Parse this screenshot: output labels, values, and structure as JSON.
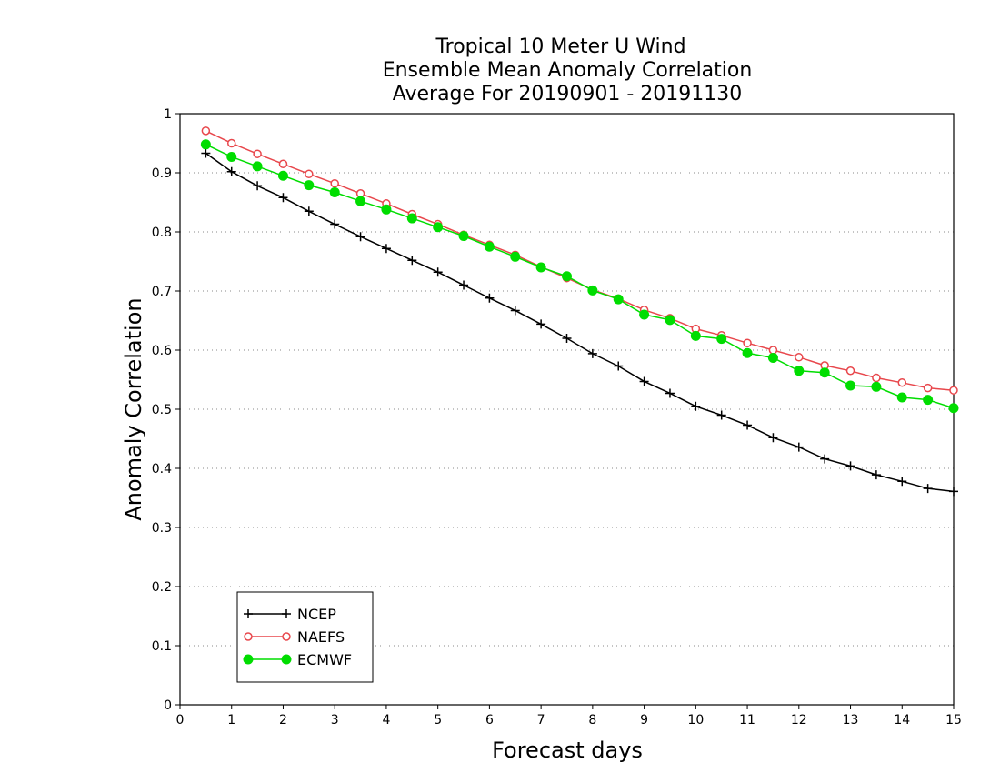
{
  "chart_data": {
    "type": "line",
    "title_lines": [
      "Tropical 10 Meter U Wind",
      "Ensemble Mean Anomaly Correlation",
      "Average For 20190901 - 20191130"
    ],
    "xlabel": "Forecast days",
    "ylabel": "Anomaly Correlation",
    "xlim": [
      0,
      15
    ],
    "ylim": [
      0,
      1
    ],
    "x_ticks": [
      "0",
      "1",
      "2",
      "3",
      "4",
      "5",
      "6",
      "7",
      "8",
      "9",
      "10",
      "11",
      "12",
      "13",
      "14",
      "15"
    ],
    "y_ticks": [
      "0",
      "0.1",
      "0.2",
      "0.3",
      "0.4",
      "0.5",
      "0.6",
      "0.7",
      "0.8",
      "0.9",
      "1"
    ],
    "grid": "horizontal dotted",
    "legend_position": "bottom-left",
    "x": [
      0.5,
      1,
      1.5,
      2,
      2.5,
      3,
      3.5,
      4,
      4.5,
      5,
      5.5,
      6,
      6.5,
      7,
      7.5,
      8,
      8.5,
      9,
      9.5,
      10,
      10.5,
      11,
      11.5,
      12,
      12.5,
      13,
      13.5,
      14,
      14.5,
      15
    ],
    "series": [
      {
        "name": "NCEP",
        "color": "#000000",
        "marker": "plus",
        "values": [
          0.933,
          0.902,
          0.878,
          0.858,
          0.835,
          0.813,
          0.792,
          0.772,
          0.752,
          0.732,
          0.71,
          0.688,
          0.667,
          0.644,
          0.62,
          0.594,
          0.573,
          0.547,
          0.527,
          0.505,
          0.49,
          0.473,
          0.452,
          0.436,
          0.416,
          0.404,
          0.389,
          0.378,
          0.366,
          0.361
        ]
      },
      {
        "name": "NAEFS",
        "color": "#e8474c",
        "marker": "open-circle",
        "values": [
          0.971,
          0.95,
          0.932,
          0.915,
          0.898,
          0.882,
          0.865,
          0.848,
          0.83,
          0.813,
          0.795,
          0.778,
          0.761,
          0.741,
          0.722,
          0.702,
          0.687,
          0.668,
          0.654,
          0.636,
          0.625,
          0.612,
          0.6,
          0.588,
          0.574,
          0.565,
          0.553,
          0.545,
          0.536,
          0.532
        ]
      },
      {
        "name": "ECMWF",
        "color": "#00dd00",
        "marker": "filled-circle",
        "values": [
          0.948,
          0.927,
          0.911,
          0.895,
          0.879,
          0.867,
          0.852,
          0.838,
          0.823,
          0.808,
          0.793,
          0.775,
          0.758,
          0.74,
          0.725,
          0.701,
          0.686,
          0.66,
          0.651,
          0.624,
          0.619,
          0.595,
          0.587,
          0.565,
          0.562,
          0.54,
          0.538,
          0.52,
          0.516,
          0.502
        ]
      }
    ]
  }
}
